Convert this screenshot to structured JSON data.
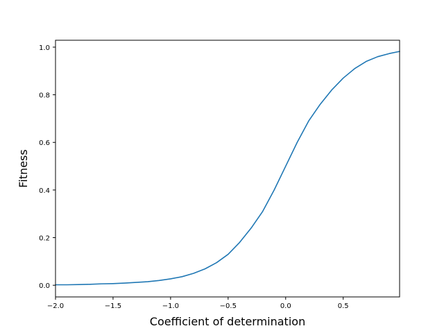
{
  "chart_data": {
    "type": "line",
    "title": "",
    "xlabel": "Coefficient of determination",
    "ylabel": "Fitness",
    "xlim": [
      -2.0,
      0.99
    ],
    "ylim": [
      -0.049,
      1.029
    ],
    "grid": false,
    "legend": "none",
    "xticks": [
      {
        "value": -2.0,
        "label": "−2.0"
      },
      {
        "value": -1.5,
        "label": "−1.5"
      },
      {
        "value": -1.0,
        "label": "−1.0"
      },
      {
        "value": -0.5,
        "label": "−0.5"
      },
      {
        "value": 0.0,
        "label": "0.0"
      },
      {
        "value": 0.5,
        "label": "0.5"
      }
    ],
    "yticks": [
      {
        "value": 0.0,
        "label": "0.0"
      },
      {
        "value": 0.2,
        "label": "0.2"
      },
      {
        "value": 0.4,
        "label": "0.4"
      },
      {
        "value": 0.6,
        "label": "0.6"
      },
      {
        "value": 0.8,
        "label": "0.8"
      },
      {
        "value": 1.0,
        "label": "1.0"
      }
    ],
    "series": [
      {
        "color": "#1f77b4",
        "x": [
          -2.0,
          -1.9,
          -1.8,
          -1.7,
          -1.6,
          -1.5,
          -1.4,
          -1.3,
          -1.2,
          -1.1,
          -1.0,
          -0.9,
          -0.8,
          -0.7,
          -0.6,
          -0.5,
          -0.4,
          -0.3,
          -0.2,
          -0.1,
          0.0,
          0.1,
          0.2,
          0.3,
          0.4,
          0.5,
          0.6,
          0.7,
          0.8,
          0.9,
          0.99
        ],
        "y": [
          0.002,
          0.002,
          0.003,
          0.004,
          0.006,
          0.007,
          0.009,
          0.012,
          0.015,
          0.02,
          0.027,
          0.036,
          0.05,
          0.069,
          0.095,
          0.13,
          0.18,
          0.24,
          0.31,
          0.4,
          0.5,
          0.6,
          0.69,
          0.76,
          0.82,
          0.87,
          0.91,
          0.94,
          0.96,
          0.973,
          0.982
        ]
      }
    ]
  }
}
